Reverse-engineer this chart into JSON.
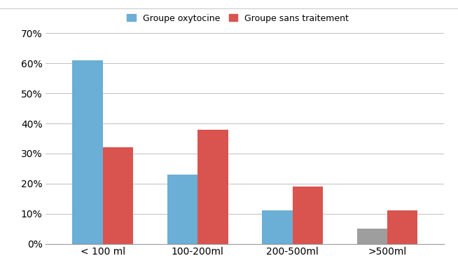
{
  "categories": [
    "< 100 ml",
    "100-200ml",
    "200-500ml",
    ">500ml"
  ],
  "group1_label": "Groupe oxytocine",
  "group2_label": "Groupe sans traitement",
  "group1_values": [
    0.61,
    0.23,
    0.11,
    0.05
  ],
  "group2_values": [
    0.32,
    0.38,
    0.19,
    0.11
  ],
  "group1_color": "#6baed6",
  "group2_color": "#d9534f",
  "group1_last_color": "#9e9e9e",
  "ylim": [
    0,
    0.7
  ],
  "yticks": [
    0.0,
    0.1,
    0.2,
    0.3,
    0.4,
    0.5,
    0.6,
    0.7
  ],
  "ytick_labels": [
    "0%",
    "10%",
    "20%",
    "30%",
    "40%",
    "50%",
    "60%",
    "70%"
  ],
  "bar_width": 0.32,
  "background_color": "#ffffff",
  "grid_color": "#c0c0c0",
  "font_size": 10,
  "legend_fontsize": 9
}
